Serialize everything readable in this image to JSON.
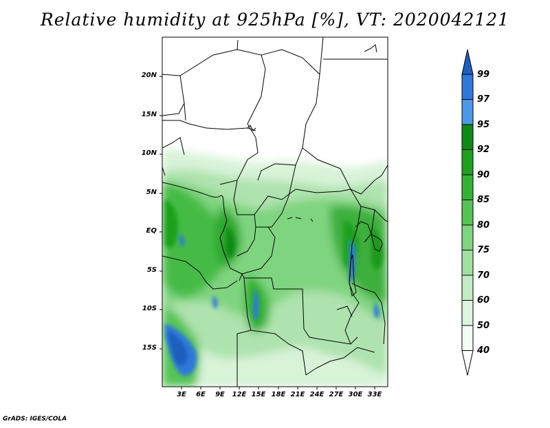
{
  "title": "Relative humidity at 925hPa [%], VT: 2020042121",
  "credit": "GrADS: IGES/COLA",
  "map": {
    "lat_labels": [
      "20N",
      "15N",
      "10N",
      "5N",
      "EQ",
      "5S",
      "10S",
      "15S"
    ],
    "lon_labels": [
      "3E",
      "6E",
      "9E",
      "12E",
      "15E",
      "18E",
      "21E",
      "24E",
      "27E",
      "30E",
      "33E"
    ]
  },
  "colorbar": {
    "labels": [
      "99",
      "97",
      "95",
      "92",
      "90",
      "85",
      "80",
      "75",
      "70",
      "60",
      "50",
      "40"
    ],
    "colors": [
      "#1f5fbf",
      "#2f78dc",
      "#4a9ae8",
      "#0f8a14",
      "#1fa01f",
      "#33b233",
      "#55c455",
      "#7fd47f",
      "#a2e0a2",
      "#c4ecc4",
      "#ddf5dd",
      "#f2fcf2"
    ]
  }
}
